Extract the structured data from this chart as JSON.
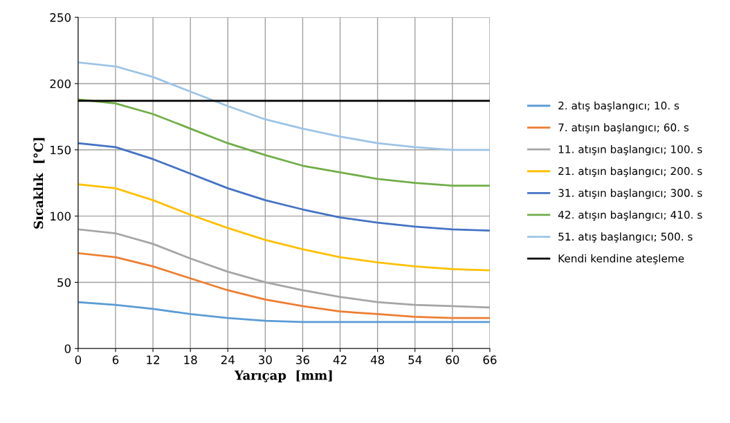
{
  "chart_data": {
    "type": "line",
    "xlabel": "Yarıçap  [mm]",
    "ylabel": "Sıcaklık  [°C]",
    "x": [
      0,
      6,
      12,
      18,
      24,
      30,
      36,
      42,
      48,
      54,
      60,
      66
    ],
    "series": [
      {
        "name": "2. atış başlangıcı; 10. s",
        "color": "#5b9bd5",
        "values": [
          35,
          33,
          30,
          26,
          23,
          21,
          20,
          20,
          20,
          20,
          20,
          20
        ]
      },
      {
        "name": "7. atışın başlangıcı; 60. s",
        "color": "#ed7d31",
        "values": [
          72,
          69,
          62,
          53,
          44,
          37,
          32,
          28,
          26,
          24,
          23,
          23
        ]
      },
      {
        "name": "11. atışın başlangıcı; 100. s",
        "color": "#a5a5a5",
        "values": [
          90,
          87,
          79,
          68,
          58,
          50,
          44,
          39,
          35,
          33,
          32,
          31
        ]
      },
      {
        "name": "21. atışın başlangıcı; 200. s",
        "color": "#ffc000",
        "values": [
          124,
          121,
          112,
          101,
          91,
          82,
          75,
          69,
          65,
          62,
          60,
          59
        ]
      },
      {
        "name": "31. atışın başlangıcı; 300. s",
        "color": "#4472c4",
        "values": [
          155,
          152,
          143,
          132,
          121,
          112,
          105,
          99,
          95,
          92,
          90,
          89
        ]
      },
      {
        "name": "42. atışın başlangıcı; 410. s",
        "color": "#70ad47",
        "values": [
          188,
          185,
          177,
          166,
          155,
          146,
          138,
          133,
          128,
          125,
          123,
          123
        ]
      },
      {
        "name": "51. atış başlangıcı; 500. s",
        "color": "#9dc3e6",
        "values": [
          216,
          213,
          205,
          194,
          183,
          173,
          166,
          160,
          155,
          152,
          150,
          150
        ]
      },
      {
        "name": "Kendi kendine ateşleme",
        "color": "#000000",
        "values": [
          187,
          187,
          187,
          187,
          187,
          187,
          187,
          187,
          187,
          187,
          187,
          187
        ]
      }
    ],
    "xlim": [
      0,
      66
    ],
    "xticks": [
      0,
      6,
      12,
      18,
      24,
      30,
      36,
      42,
      48,
      54,
      60,
      66
    ],
    "ylim": [
      0,
      250
    ],
    "yticks": [
      0,
      50,
      100,
      150,
      200,
      250
    ],
    "grid": true,
    "legend": "right",
    "marker": "none",
    "line_style": "solid"
  }
}
